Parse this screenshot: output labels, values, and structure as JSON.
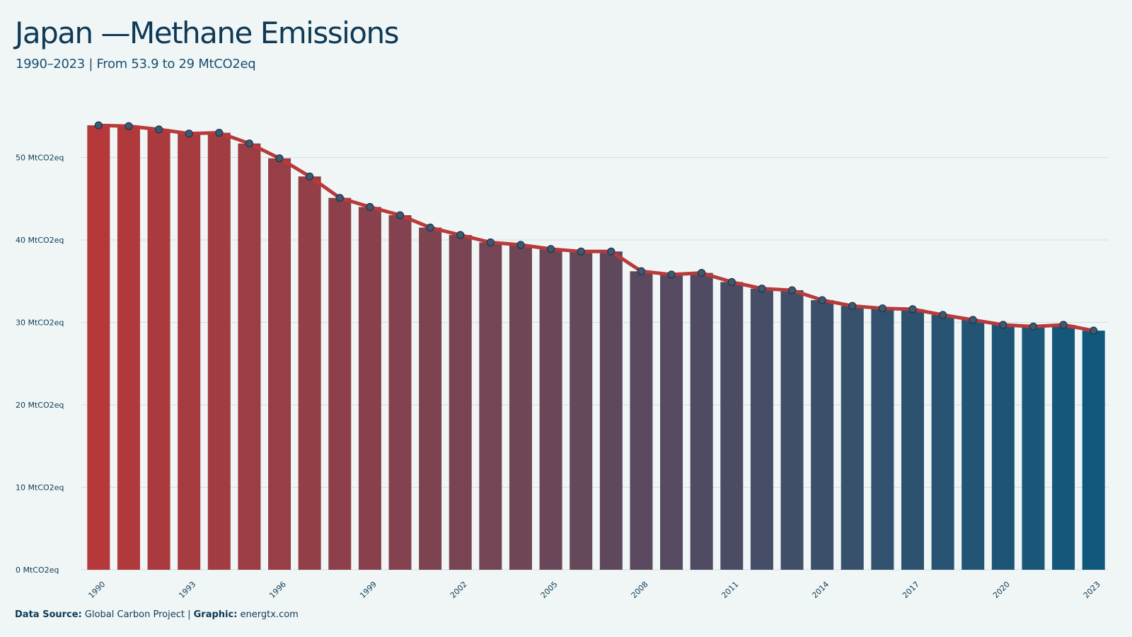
{
  "header": {
    "title": "Japan —Methane Emissions",
    "subtitle": "1990–2023 | From 53.9 to 29 MtCO2eq"
  },
  "caption": {
    "source_label": "Data Source:",
    "source_value": "Global Carbon Project",
    "separator": "|",
    "graphic_label": "Graphic:",
    "graphic_value": "energtx.com"
  },
  "colors": {
    "background": "#f0f6f6",
    "bar_start": "#b5383a",
    "bar_end": "#0f587c",
    "line": "#b93a3b",
    "point_fill": "#3d5a73",
    "point_stroke": "#1f3346",
    "grid": "#d4dde0",
    "text": "#0e3a56"
  },
  "chart_data": {
    "type": "bar",
    "overlay": "line",
    "x": [
      1990,
      1991,
      1992,
      1993,
      1994,
      1995,
      1996,
      1997,
      1998,
      1999,
      2000,
      2001,
      2002,
      2003,
      2004,
      2005,
      2006,
      2007,
      2008,
      2009,
      2010,
      2011,
      2012,
      2013,
      2014,
      2015,
      2016,
      2017,
      2018,
      2019,
      2020,
      2021,
      2022,
      2023
    ],
    "values": [
      53.9,
      53.8,
      53.4,
      52.9,
      53.0,
      51.7,
      49.9,
      47.7,
      45.1,
      44.0,
      43.0,
      41.5,
      40.6,
      39.7,
      39.4,
      38.9,
      38.6,
      38.6,
      36.2,
      35.8,
      36.0,
      34.9,
      34.1,
      33.9,
      32.7,
      32.0,
      31.7,
      31.6,
      30.9,
      30.3,
      29.7,
      29.5,
      29.7,
      29.0
    ],
    "x_tick_labels": [
      "1990",
      "1993",
      "1996",
      "1999",
      "2002",
      "2005",
      "2008",
      "2011",
      "2014",
      "2017",
      "2020",
      "2023"
    ],
    "y_ticks": [
      0,
      10,
      20,
      30,
      40,
      50
    ],
    "y_unit": "MtCO2eq",
    "ylim": [
      0,
      54
    ],
    "grid": "horizontal",
    "legend": "none"
  }
}
